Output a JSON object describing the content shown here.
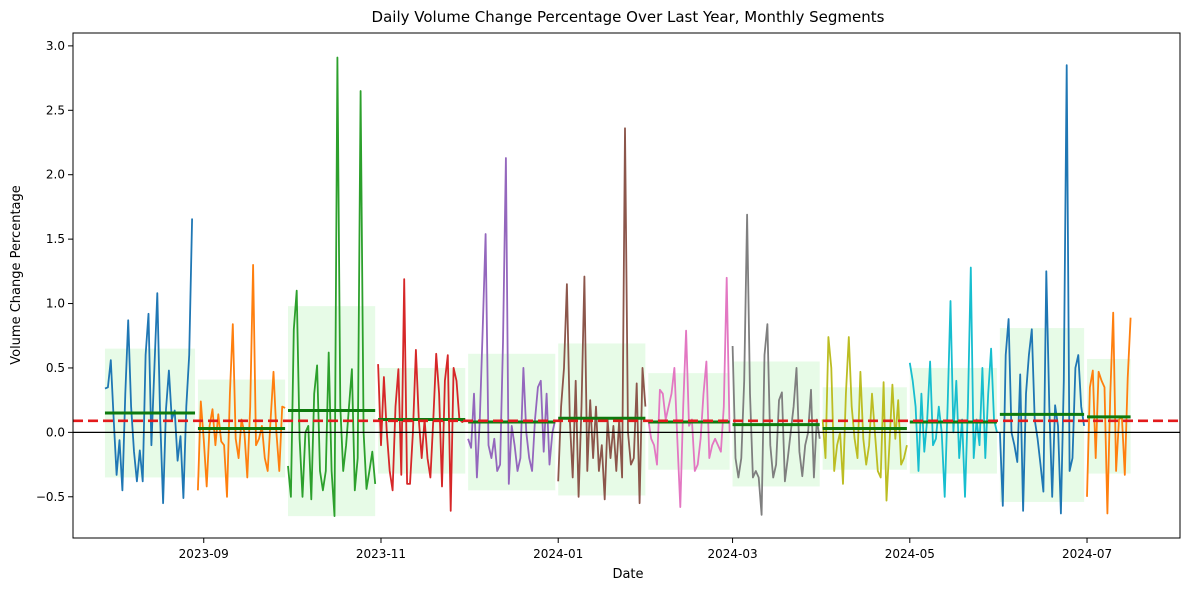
{
  "chart_data": {
    "type": "line",
    "title": "Daily Volume Change Percentage Over Last Year, Monthly Segments",
    "xlabel": "Date",
    "ylabel": "Volume Change Percentage",
    "x_range": [
      "2023-07-18",
      "2024-08-02"
    ],
    "ylim": [
      -0.82,
      3.1
    ],
    "x_ticks": [
      {
        "date": "2023-09-01",
        "label": "2023-09"
      },
      {
        "date": "2023-11-01",
        "label": "2023-11"
      },
      {
        "date": "2024-01-01",
        "label": "2024-01"
      },
      {
        "date": "2024-03-01",
        "label": "2024-03"
      },
      {
        "date": "2024-05-01",
        "label": "2024-05"
      },
      {
        "date": "2024-07-01",
        "label": "2024-07"
      }
    ],
    "y_ticks": [
      -0.5,
      0.0,
      0.5,
      1.0,
      1.5,
      2.0,
      2.5,
      3.0
    ],
    "overall_mean": 0.09,
    "overall_mean_color": "#e31a1c",
    "zero_line_color": "#000000",
    "monthly_mean_color": "#0d7a0d",
    "band_color": "#90ee90",
    "grid": false,
    "segments": [
      {
        "start": "2023-07-29",
        "end": "2023-08-29",
        "color": "#1f77b4",
        "mean": 0.15,
        "band": [
          -0.35,
          0.65
        ],
        "values": [
          0.34,
          0.35,
          0.56,
          0.1,
          -0.33,
          -0.06,
          -0.45,
          0.3,
          0.87,
          0.2,
          -0.15,
          -0.38,
          -0.14,
          -0.38,
          0.6,
          0.92,
          -0.1,
          0.5,
          1.08,
          0.1,
          -0.55,
          0.18,
          0.48,
          0.1,
          0.17,
          -0.22,
          -0.03,
          -0.51,
          0.2,
          0.6,
          1.66
        ]
      },
      {
        "start": "2023-08-30",
        "end": "2023-09-29",
        "color": "#ff7f0e",
        "mean": 0.03,
        "band": [
          -0.35,
          0.41
        ],
        "values": [
          -0.45,
          0.24,
          -0.05,
          -0.42,
          0.05,
          0.18,
          -0.1,
          0.14,
          -0.07,
          -0.1,
          -0.5,
          0.3,
          0.84,
          -0.05,
          -0.2,
          0.1,
          0.0,
          -0.35,
          0.2,
          1.3,
          -0.1,
          -0.05,
          0.05,
          -0.2,
          -0.3,
          0.1,
          0.47,
          0.0,
          -0.3,
          0.2,
          0.19
        ]
      },
      {
        "start": "2023-09-30",
        "end": "2023-10-30",
        "color": "#2ca02c",
        "mean": 0.17,
        "band": [
          -0.65,
          0.98
        ],
        "values": [
          -0.26,
          -0.5,
          0.8,
          1.1,
          -0.05,
          -0.5,
          0.0,
          0.05,
          -0.52,
          0.3,
          0.52,
          -0.3,
          -0.45,
          -0.3,
          0.62,
          -0.3,
          -0.65,
          2.91,
          0.2,
          -0.3,
          -0.1,
          0.2,
          0.49,
          -0.45,
          -0.2,
          2.65,
          0.0,
          -0.44,
          -0.3,
          -0.15,
          -0.4
        ]
      },
      {
        "start": "2023-10-31",
        "end": "2023-11-30",
        "color": "#d62728",
        "mean": 0.1,
        "band": [
          -0.32,
          0.5
        ],
        "values": [
          0.53,
          -0.1,
          0.43,
          0.0,
          -0.3,
          -0.45,
          0.2,
          0.49,
          -0.33,
          1.19,
          -0.4,
          -0.4,
          0.0,
          0.64,
          0.1,
          -0.2,
          0.1,
          -0.2,
          -0.35,
          0.1,
          0.61,
          0.3,
          -0.42,
          0.4,
          0.6,
          -0.61,
          0.5,
          0.4,
          0.1,
          0.08,
          0.1
        ]
      },
      {
        "start": "2023-12-01",
        "end": "2023-12-31",
        "color": "#9467bd",
        "mean": 0.08,
        "band": [
          -0.45,
          0.61
        ],
        "values": [
          -0.05,
          -0.12,
          0.3,
          -0.35,
          0.1,
          0.8,
          1.54,
          -0.1,
          -0.2,
          -0.05,
          -0.3,
          -0.25,
          0.7,
          2.13,
          -0.4,
          0.05,
          -0.1,
          -0.3,
          -0.2,
          0.5,
          0.0,
          -0.2,
          -0.3,
          0.1,
          0.35,
          0.4,
          -0.15,
          0.3,
          -0.25,
          0.0,
          0.1
        ]
      },
      {
        "start": "2024-01-01",
        "end": "2024-01-31",
        "color": "#8c564b",
        "mean": 0.11,
        "band": [
          -0.49,
          0.69
        ],
        "values": [
          -0.38,
          0.2,
          0.5,
          1.15,
          0.1,
          -0.35,
          0.4,
          -0.5,
          0.2,
          1.21,
          -0.3,
          0.25,
          -0.2,
          0.2,
          -0.3,
          -0.1,
          -0.52,
          0.1,
          -0.2,
          0.05,
          -0.3,
          0.1,
          -0.35,
          2.36,
          0.0,
          -0.25,
          -0.2,
          0.38,
          -0.55,
          0.5,
          0.2
        ]
      },
      {
        "start": "2024-02-01",
        "end": "2024-02-29",
        "color": "#e377c2",
        "mean": 0.08,
        "band": [
          -0.29,
          0.46
        ],
        "values": [
          0.1,
          -0.05,
          -0.1,
          -0.25,
          0.33,
          0.3,
          0.1,
          0.2,
          0.3,
          0.5,
          -0.05,
          -0.58,
          0.2,
          0.79,
          0.05,
          0.1,
          -0.3,
          -0.25,
          -0.05,
          0.3,
          0.55,
          -0.2,
          -0.1,
          -0.05,
          -0.1,
          -0.15,
          0.2,
          1.2,
          0.0
        ]
      },
      {
        "start": "2024-03-01",
        "end": "2024-03-31",
        "color": "#7f7f7f",
        "mean": 0.06,
        "band": [
          -0.42,
          0.55
        ],
        "values": [
          0.67,
          -0.2,
          -0.35,
          -0.2,
          0.4,
          1.69,
          0.3,
          -0.35,
          -0.3,
          -0.35,
          -0.64,
          0.6,
          0.84,
          -0.1,
          -0.35,
          -0.25,
          0.25,
          0.31,
          -0.38,
          -0.2,
          0.0,
          0.2,
          0.5,
          -0.15,
          -0.34,
          -0.1,
          0.0,
          0.33,
          -0.35,
          0.1,
          -0.05
        ]
      },
      {
        "start": "2024-04-01",
        "end": "2024-04-30",
        "color": "#bcbd22",
        "mean": 0.03,
        "band": [
          -0.29,
          0.35
        ],
        "values": [
          0.1,
          -0.2,
          0.74,
          0.5,
          -0.3,
          -0.1,
          0.0,
          -0.4,
          0.3,
          0.74,
          0.2,
          -0.05,
          -0.2,
          0.47,
          -0.05,
          -0.25,
          -0.1,
          0.3,
          0.0,
          -0.3,
          -0.35,
          0.39,
          -0.53,
          -0.1,
          0.37,
          -0.05,
          0.25,
          -0.25,
          -0.2,
          -0.1
        ]
      },
      {
        "start": "2024-05-01",
        "end": "2024-05-31",
        "color": "#17becf",
        "mean": 0.08,
        "band": [
          -0.32,
          0.5
        ],
        "values": [
          0.54,
          0.4,
          0.2,
          -0.3,
          0.3,
          -0.15,
          0.1,
          0.55,
          -0.1,
          -0.05,
          0.2,
          0.0,
          -0.5,
          0.2,
          1.02,
          0.0,
          0.4,
          -0.2,
          0.1,
          -0.5,
          0.2,
          1.28,
          -0.2,
          0.1,
          -0.1,
          0.5,
          -0.2,
          0.3,
          0.65,
          0.1,
          0.0
        ]
      },
      {
        "start": "2024-06-01",
        "end": "2024-06-30",
        "color": "#1f77b4",
        "mean": 0.14,
        "band": [
          -0.54,
          0.81
        ],
        "values": [
          0.0,
          -0.57,
          0.6,
          0.88,
          0.0,
          -0.1,
          -0.23,
          0.45,
          -0.61,
          0.3,
          0.6,
          0.8,
          0.1,
          -0.05,
          -0.25,
          -0.46,
          1.25,
          0.2,
          -0.5,
          0.21,
          0.05,
          -0.63,
          0.4,
          2.85,
          -0.3,
          -0.2,
          0.5,
          0.6,
          0.2,
          0.05
        ]
      },
      {
        "start": "2024-07-01",
        "end": "2024-07-16",
        "color": "#ff7f0e",
        "mean": 0.12,
        "band": [
          -0.32,
          0.57
        ],
        "values": [
          -0.5,
          0.35,
          0.48,
          -0.2,
          0.47,
          0.4,
          0.35,
          -0.63,
          0.3,
          0.93,
          -0.3,
          0.1,
          0.12,
          -0.33,
          0.42,
          0.89
        ]
      }
    ]
  }
}
